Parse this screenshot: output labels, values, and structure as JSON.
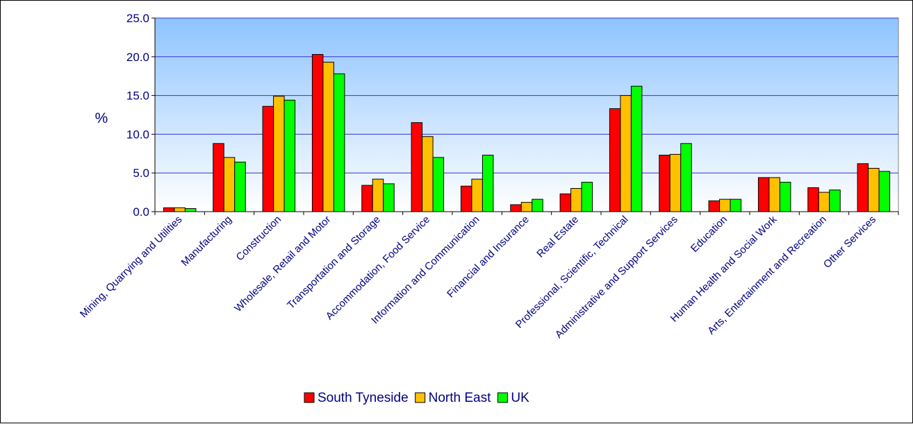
{
  "chart_data": {
    "type": "bar",
    "ylabel": "%",
    "ylim": [
      0,
      25
    ],
    "yticks": [
      "0.0",
      "5.0",
      "10.0",
      "15.0",
      "20.0",
      "25.0"
    ],
    "grid": true,
    "legend_position": "bottom",
    "categories": [
      "Mining, Quarrying and Utilities",
      "Manufacturing",
      "Construction",
      "Wholesale, Retail and Motor",
      "Transportation and Storage",
      "Accommodation, Food Service",
      "Information and Communication",
      "Financial and Insurance",
      "Real Estate",
      "Professional, Scientific, Technical",
      "Administrative and Support Services",
      "Education",
      "Human Health and Social Work",
      "Arts, Entertainment and Recreation",
      "Other Services"
    ],
    "series": [
      {
        "name": "South Tyneside",
        "color": "#ff0000",
        "values": [
          0.5,
          8.8,
          13.6,
          20.3,
          3.4,
          11.5,
          3.3,
          0.9,
          2.3,
          13.3,
          7.3,
          1.4,
          4.4,
          3.1,
          6.2
        ]
      },
      {
        "name": "North East",
        "color": "#ffc000",
        "values": [
          0.5,
          7.0,
          14.9,
          19.3,
          4.2,
          9.7,
          4.2,
          1.2,
          3.0,
          15.0,
          7.4,
          1.6,
          4.4,
          2.5,
          5.6
        ]
      },
      {
        "name": "UK",
        "color": "#00ff00",
        "values": [
          0.4,
          6.4,
          14.4,
          17.8,
          3.6,
          7.0,
          7.3,
          1.6,
          3.8,
          16.2,
          8.8,
          1.6,
          3.8,
          2.8,
          5.2
        ]
      }
    ]
  }
}
